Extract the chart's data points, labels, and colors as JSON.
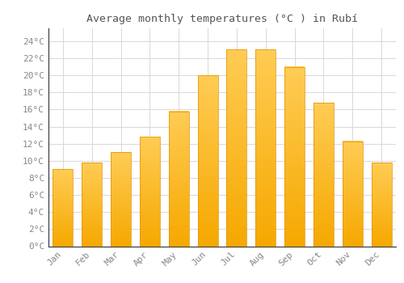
{
  "title": "Average monthly temperatures (°C ) in Rubí",
  "months": [
    "Jan",
    "Feb",
    "Mar",
    "Apr",
    "May",
    "Jun",
    "Jul",
    "Aug",
    "Sep",
    "Oct",
    "Nov",
    "Dec"
  ],
  "values": [
    9.0,
    9.8,
    11.0,
    12.8,
    15.8,
    20.0,
    23.0,
    23.0,
    21.0,
    16.8,
    12.3,
    9.8
  ],
  "bar_color_top": "#FFC84A",
  "bar_color_bottom": "#F5A800",
  "background_color": "#ffffff",
  "grid_color": "#d8d8d8",
  "title_fontsize": 9.5,
  "tick_fontsize": 8,
  "ylabel_ticks": [
    0,
    2,
    4,
    6,
    8,
    10,
    12,
    14,
    16,
    18,
    20,
    22,
    24
  ],
  "ylim": [
    0,
    25.5
  ],
  "bar_width": 0.7,
  "tick_color": "#888888",
  "spine_color": "#333333"
}
